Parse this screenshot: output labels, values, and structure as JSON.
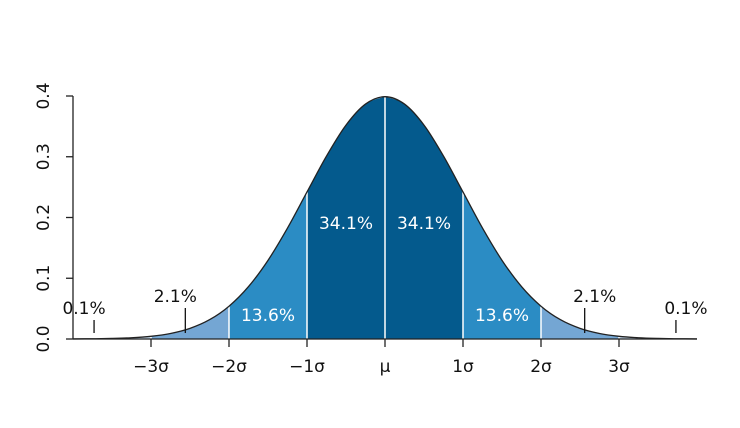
{
  "chart_data": {
    "type": "area",
    "x": [
      -4,
      -3.75,
      -3.5,
      -3.25,
      -3,
      -2.75,
      -2.5,
      -2.25,
      -2,
      -1.75,
      -1.5,
      -1.25,
      -1,
      -0.75,
      -0.5,
      -0.25,
      0,
      0.25,
      0.5,
      0.75,
      1,
      1.25,
      1.5,
      1.75,
      2,
      2.25,
      2.5,
      2.75,
      3,
      3.25,
      3.5,
      3.75,
      4
    ],
    "values": [
      0.0001,
      0.0004,
      0.0009,
      0.002,
      0.0044,
      0.0091,
      0.0175,
      0.0317,
      0.054,
      0.0863,
      0.1295,
      0.1826,
      0.242,
      0.3011,
      0.3521,
      0.3867,
      0.3989,
      0.3867,
      0.3521,
      0.3011,
      0.242,
      0.1826,
      0.1295,
      0.0863,
      0.054,
      0.0317,
      0.0175,
      0.0091,
      0.0044,
      0.002,
      0.0009,
      0.0004,
      0.0001
    ],
    "color": "#222222",
    "xlim": [
      -4,
      4
    ],
    "ylim": [
      0,
      0.4
    ],
    "xticks": [
      {
        "value": -3,
        "label": "−3σ"
      },
      {
        "value": -2,
        "label": "−2σ"
      },
      {
        "value": -1,
        "label": "−1σ"
      },
      {
        "value": 0,
        "label": "μ"
      },
      {
        "value": 1,
        "label": "1σ"
      },
      {
        "value": 2,
        "label": "2σ"
      },
      {
        "value": 3,
        "label": "3σ"
      }
    ],
    "yticks": [
      {
        "value": 0,
        "label": "0.0"
      },
      0.1,
      0.2,
      0.3,
      0.4
    ],
    "bands": {
      "edges": [
        -4,
        -3,
        -2,
        -1,
        0,
        1,
        2,
        3,
        4
      ],
      "values": [
        0.1,
        2.1,
        13.6,
        34.1,
        34.1,
        13.6,
        2.1,
        0.1
      ],
      "value_labels": [
        "0.1%",
        "2.1%",
        "13.6%",
        "34.1%",
        "34.1%",
        "13.6%",
        "2.1%",
        "0.1%"
      ],
      "colors": [
        "#c6dbef",
        "#74a6d3",
        "#2b8cc4",
        "#045a8d",
        "#045a8d",
        "#2b8cc4",
        "#74a6d3",
        "#c6dbef"
      ]
    }
  }
}
